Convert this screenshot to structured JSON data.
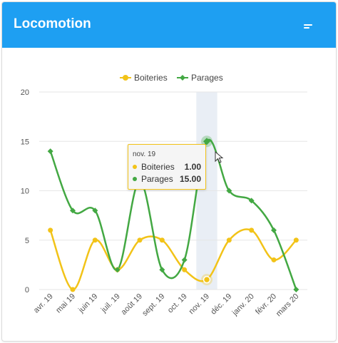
{
  "app": {
    "title": "Locomotion"
  },
  "colors": {
    "header": "#1e9ff2",
    "boiteries": "#f2c318",
    "parages": "#43a843",
    "grid": "#e6e6e6",
    "highlight": "#e9eef5"
  },
  "icons": {
    "menu": "menu-icon"
  },
  "chart_data": {
    "type": "line",
    "categories": [
      "avr. 19",
      "mai 19",
      "juin 19",
      "juil. 19",
      "août 19",
      "sept. 19",
      "oct. 19",
      "nov. 19",
      "déc. 19",
      "janv. 20",
      "févr. 20",
      "mars 20"
    ],
    "series": [
      {
        "name": "Boiteries",
        "values": [
          6,
          0,
          5,
          2,
          5,
          5,
          2,
          1,
          5,
          6,
          3,
          5
        ]
      },
      {
        "name": "Parages",
        "values": [
          14,
          8,
          8,
          2,
          11,
          2,
          3,
          15,
          10,
          9,
          6,
          0
        ]
      }
    ],
    "y_ticks": [
      "0",
      "5",
      "10",
      "15",
      "20"
    ],
    "ylim": [
      0,
      20
    ],
    "grid": true,
    "legend": "top-center",
    "highlighted_category": "nov. 19"
  },
  "tooltip": {
    "header": "nov. 19",
    "rows": [
      {
        "label": "Boiteries",
        "value": "1.00"
      },
      {
        "label": "Parages",
        "value": "15.00"
      }
    ]
  }
}
